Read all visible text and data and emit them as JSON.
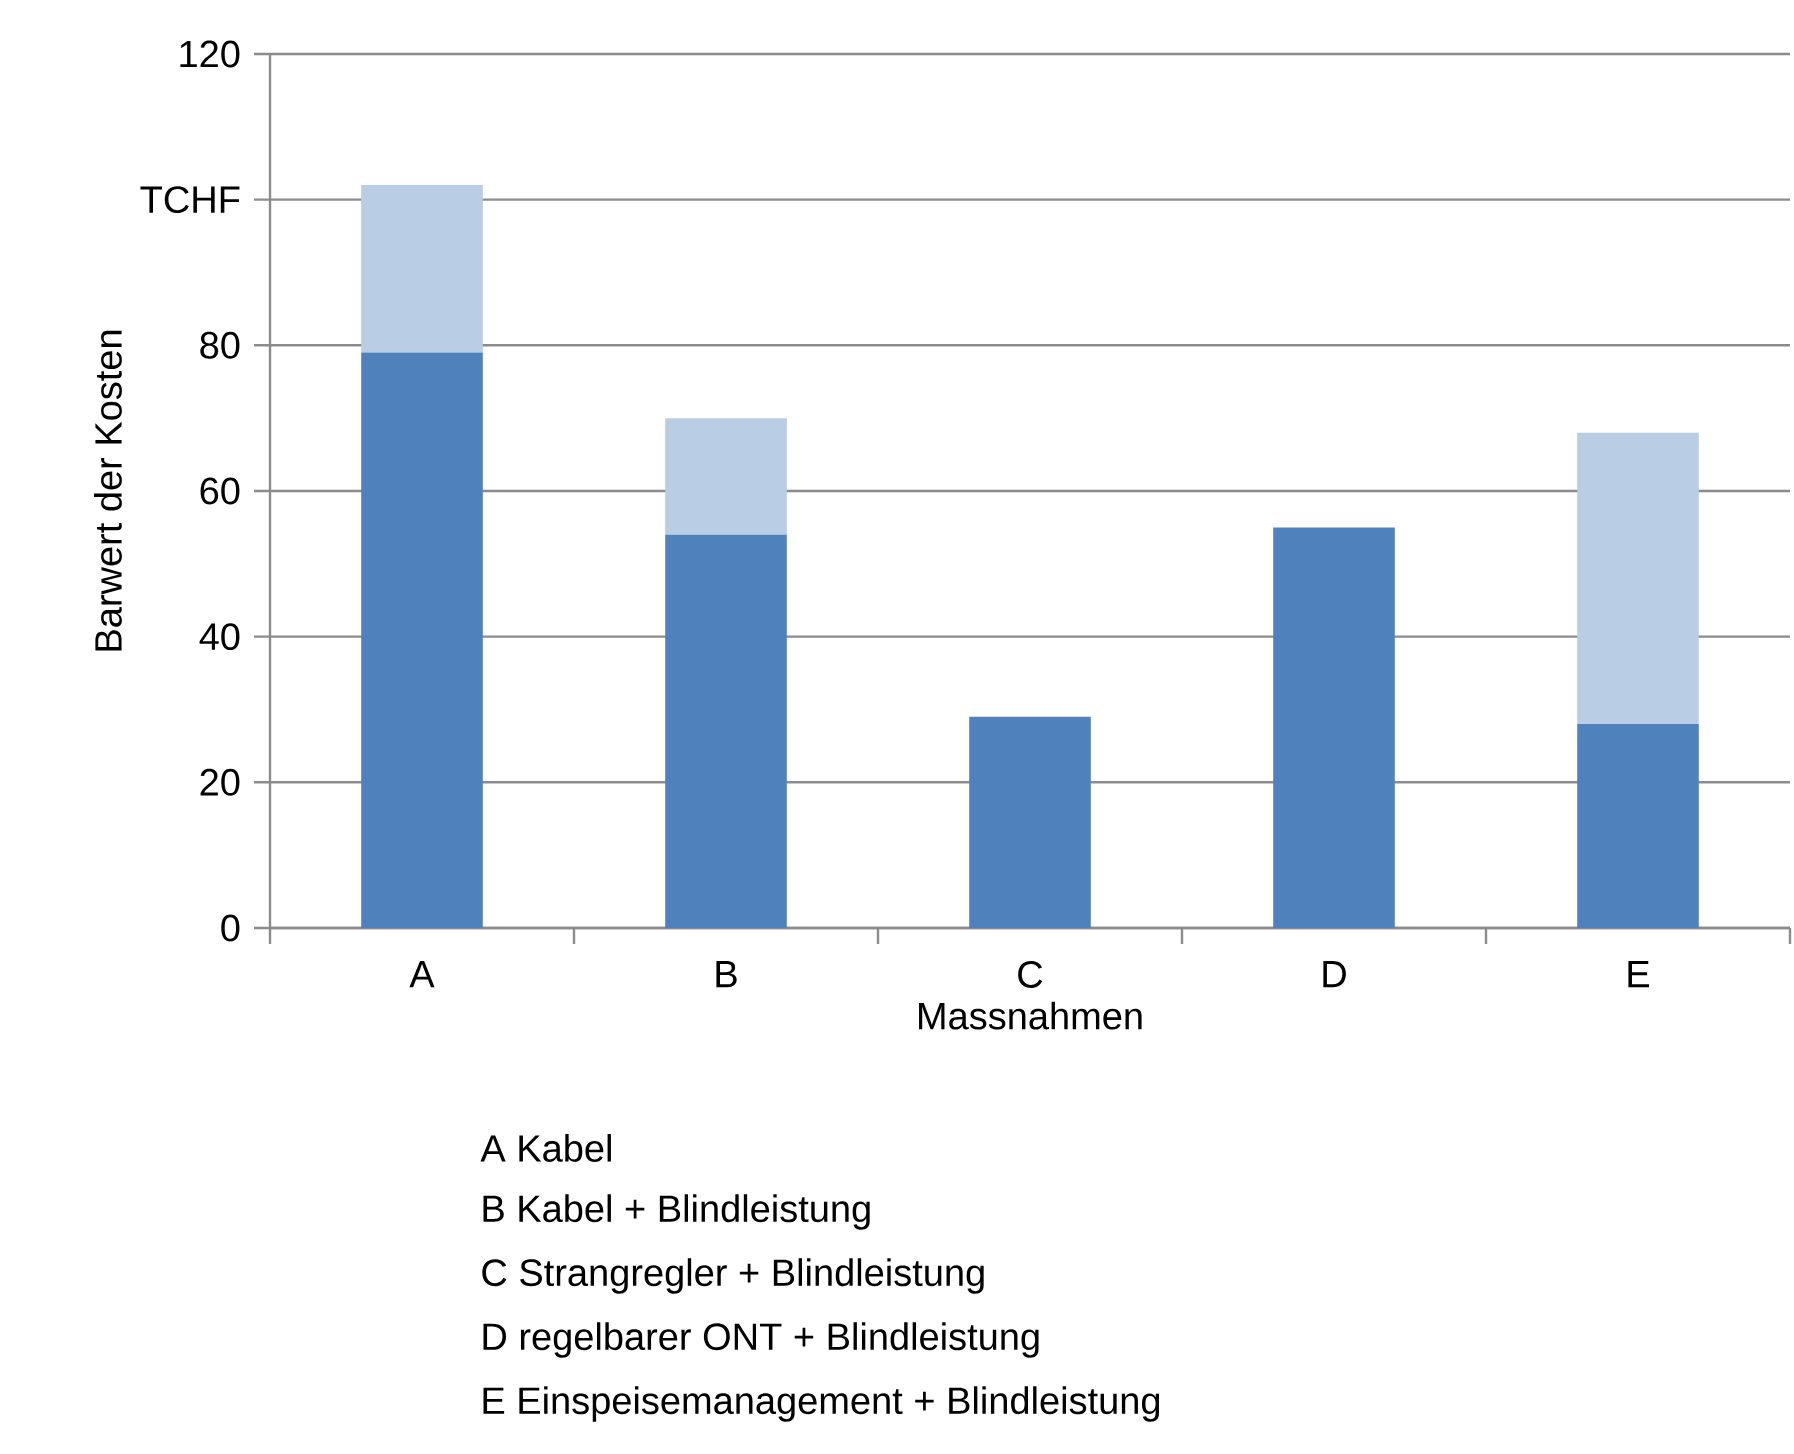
{
  "chart_data": {
    "type": "bar",
    "stacked": true,
    "xlabel": "Massnahmen",
    "ylabel": "Barwert der Kosten",
    "categories": [
      "A",
      "B",
      "C",
      "D",
      "E"
    ],
    "series": [
      {
        "color": "#4f81bd",
        "values": [
          79,
          54,
          29,
          55,
          28
        ]
      },
      {
        "color": "#b9cde5",
        "values": [
          23,
          16,
          0,
          0,
          40
        ]
      }
    ],
    "ylim": [
      0,
      120
    ],
    "yticks": [
      0,
      20,
      40,
      60,
      80,
      {
        "value": 100,
        "label": "TCHF"
      },
      120
    ],
    "grid": "y",
    "annotations": [
      "A  Kabel",
      "B  Kabel + Blindleistung",
      "C  Strangregler + Blindleistung",
      "D  regelbarer ONT + Blindleistung",
      "E  Einspeisemanagement + Blindleistung"
    ]
  }
}
